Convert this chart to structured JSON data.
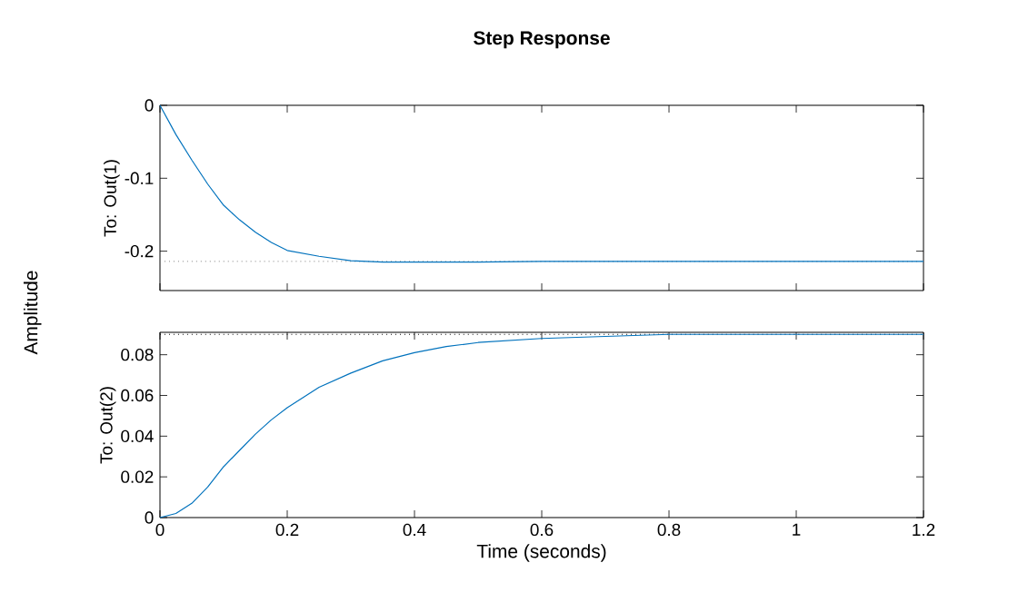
{
  "chart_data": [
    {
      "type": "line",
      "title": "Step Response",
      "ylabel": "To: Out(1)",
      "annotations": [
        "Amplitude"
      ],
      "color": "#0072bd",
      "x": [
        0,
        0.025,
        0.05,
        0.075,
        0.1,
        0.125,
        0.15,
        0.175,
        0.2,
        0.25,
        0.3,
        0.35,
        0.4,
        0.5,
        0.6,
        0.8,
        1.0,
        1.2
      ],
      "values": [
        0,
        -0.04,
        -0.075,
        -0.108,
        -0.137,
        -0.157,
        -0.174,
        -0.188,
        -0.199,
        -0.207,
        -0.213,
        -0.215,
        -0.215,
        -0.215,
        -0.214,
        -0.214,
        -0.214,
        -0.214
      ],
      "xlim": [
        0,
        1.2
      ],
      "xticks": [
        0,
        0.2,
        0.4,
        0.6,
        0.8,
        1,
        1.2
      ],
      "ylim": [
        -0.254,
        0
      ],
      "yticks": [
        -0.2,
        -0.1,
        0
      ],
      "tick_labels": "y",
      "ref_lines": [
        {
          "axis": "y",
          "value": -0.214,
          "color": "#808080",
          "line_style": "dotted"
        }
      ]
    },
    {
      "type": "line",
      "xlabel": "Time (seconds)",
      "ylabel": "To: Out(2)",
      "color": "#0072bd",
      "x": [
        0,
        0.025,
        0.05,
        0.075,
        0.1,
        0.125,
        0.15,
        0.175,
        0.2,
        0.25,
        0.3,
        0.35,
        0.4,
        0.45,
        0.5,
        0.6,
        0.7,
        0.8,
        1.0,
        1.2
      ],
      "values": [
        0,
        0.002,
        0.007,
        0.015,
        0.025,
        0.033,
        0.041,
        0.048,
        0.054,
        0.064,
        0.071,
        0.077,
        0.081,
        0.084,
        0.086,
        0.088,
        0.089,
        0.09,
        0.09,
        0.09
      ],
      "xlim": [
        0,
        1.2
      ],
      "xticks": [
        0,
        0.2,
        0.4,
        0.6,
        0.8,
        1,
        1.2
      ],
      "ylim": [
        0,
        0.091
      ],
      "yticks": [
        0,
        0.02,
        0.04,
        0.06,
        0.08
      ],
      "ref_lines": [
        {
          "axis": "y",
          "value": 0.09,
          "color": "#000000",
          "line_style": "dotted"
        }
      ]
    }
  ]
}
